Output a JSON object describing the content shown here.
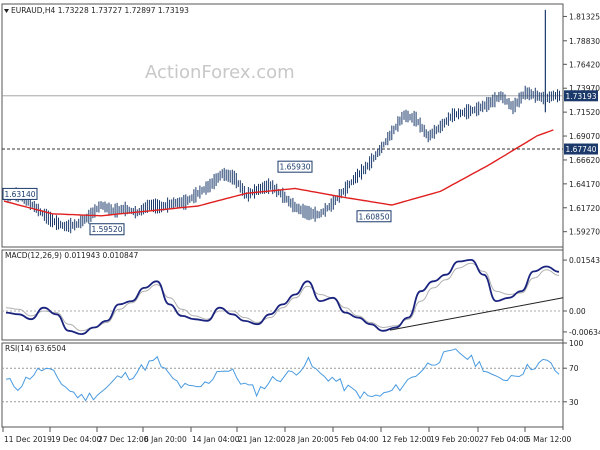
{
  "chart_data": [
    {
      "type": "candlestick",
      "title": "EURAUD,H4  1.73228 1.73727 1.72897 1.73193",
      "watermark": "ActionForex.com",
      "ylim": [
        1.577,
        1.826
      ],
      "y_ticks": [
        "1.81325",
        "1.78830",
        "1.76420",
        "1.73970",
        "1.71520",
        "1.69070",
        "1.66620",
        "1.64170",
        "1.61720",
        "1.59270"
      ],
      "last_price_label": "1.73193",
      "horizontal_line_label": "1.67740",
      "price_labels": [
        "1.63140",
        "1.59520",
        "1.65930",
        "1.60850"
      ],
      "series": [
        {
          "name": "Close",
          "x": [
            0,
            6,
            12,
            18,
            24,
            30,
            36,
            42,
            48,
            54,
            60,
            66,
            72,
            78,
            84,
            90,
            96,
            102,
            108,
            114,
            120,
            126,
            132,
            138,
            144,
            150,
            156,
            162,
            168,
            174,
            180,
            186,
            192,
            198,
            204,
            210,
            216,
            222,
            228,
            234,
            240,
            246,
            252,
            258,
            264,
            268,
            272
          ],
          "values": [
            1.628,
            1.631,
            1.624,
            1.613,
            1.604,
            1.598,
            1.6,
            1.608,
            1.62,
            1.614,
            1.616,
            1.612,
            1.62,
            1.618,
            1.622,
            1.623,
            1.632,
            1.64,
            1.652,
            1.648,
            1.63,
            1.636,
            1.64,
            1.63,
            1.618,
            1.612,
            1.61,
            1.62,
            1.634,
            1.648,
            1.66,
            1.676,
            1.694,
            1.712,
            1.708,
            1.69,
            1.7,
            1.712,
            1.715,
            1.718,
            1.724,
            1.732,
            1.72,
            1.735,
            1.732,
            1.729,
            1.732
          ]
        },
        {
          "name": "SMA",
          "x": [
            0,
            24,
            48,
            72,
            96,
            120,
            144,
            168,
            192,
            216,
            240,
            264,
            272
          ],
          "values": [
            1.624,
            1.611,
            1.609,
            1.614,
            1.619,
            1.632,
            1.637,
            1.628,
            1.62,
            1.634,
            1.661,
            1.691,
            1.697
          ]
        }
      ],
      "spike": {
        "high": 1.82,
        "low": 1.715,
        "open": 1.736,
        "close": 1.732
      }
    },
    {
      "type": "line",
      "title": "MACD(12,26,9) 0.011943 0.010847",
      "ylim": [
        -0.0088,
        0.0185
      ],
      "y_ticks": [
        "0.015438",
        "0.00",
        "-0.006347"
      ],
      "series": [
        {
          "name": "MACD",
          "values": [
            -0.0005,
            -0.001,
            -0.0025,
            0.001,
            -0.001,
            -0.006,
            -0.007,
            -0.005,
            -0.003,
            0.002,
            0.003,
            0.007,
            0.009,
            0.002,
            -0.0015,
            -0.0025,
            -0.003,
            0.001,
            -0.001,
            -0.003,
            -0.004,
            -0.001,
            0.002,
            0.005,
            0.009,
            0.003,
            0.004,
            -0.0005,
            -0.002,
            -0.004,
            -0.006,
            -0.005,
            -0.002,
            0.006,
            0.009,
            0.011,
            0.015,
            0.0155,
            0.011,
            0.003,
            0.004,
            0.006,
            0.012,
            0.0135,
            0.0119
          ]
        },
        {
          "name": "Signal",
          "values": [
            0.001,
            0.0005,
            -0.0015,
            0.0,
            -0.0005,
            -0.004,
            -0.006,
            -0.005,
            -0.0035,
            0.0005,
            0.0025,
            0.006,
            0.008,
            0.004,
            0.0005,
            -0.0015,
            -0.0025,
            0.0,
            0.0,
            -0.002,
            -0.0035,
            -0.002,
            0.001,
            0.004,
            0.0075,
            0.005,
            0.004,
            0.001,
            -0.0015,
            -0.0035,
            -0.005,
            -0.0045,
            -0.0025,
            0.003,
            0.007,
            0.0095,
            0.013,
            0.0145,
            0.012,
            0.006,
            0.005,
            0.0055,
            0.01,
            0.0125,
            0.0108
          ]
        }
      ]
    },
    {
      "type": "line",
      "title": "RSI(14) 63.6504",
      "ylim": [
        0,
        100
      ],
      "y_ticks": [
        "100",
        "70",
        "30",
        "0"
      ],
      "series": [
        {
          "name": "RSI",
          "values": [
            55,
            48,
            62,
            70,
            60,
            44,
            35,
            38,
            46,
            60,
            62,
            72,
            80,
            60,
            48,
            45,
            52,
            70,
            65,
            50,
            42,
            55,
            60,
            66,
            78,
            62,
            58,
            47,
            40,
            35,
            38,
            45,
            55,
            68,
            78,
            85,
            90,
            80,
            72,
            55,
            60,
            66,
            74,
            78,
            64
          ]
        }
      ]
    }
  ],
  "x_axis_labels": [
    "11 Dec 2019",
    "19 Dec 04:00",
    "27 Dec 12:00",
    "6 Jan 20:00",
    "14 Jan 04:00",
    "21 Jan 12:00",
    "28 Jan 20:00",
    "5 Feb 04:00",
    "12 Feb 12:00",
    "19 Feb 20:00",
    "27 Feb 04:00",
    "5 Mar 12:00"
  ],
  "colors": {
    "price": "#1b3a6b",
    "sma": "#e02020",
    "macd": "#1a237e",
    "signal": "#b0b0b0",
    "rsi": "#4a9be0",
    "label_bg": "#1b3a6b",
    "grid": "#aaaaaa"
  }
}
